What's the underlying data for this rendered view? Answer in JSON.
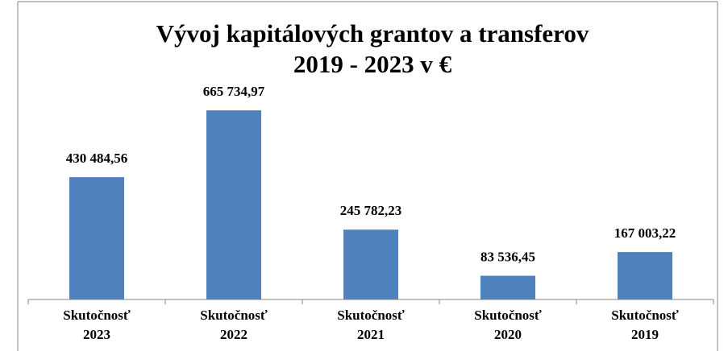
{
  "chart_data": {
    "type": "bar",
    "title": [
      "Vývoj kapitálových grantov a transferov",
      "2019 - 2023 v €"
    ],
    "categories": [
      "Skutočnosť 2023",
      "Skutočnosť 2022",
      "Skutočnosť 2021",
      "Skutočnosť 2020",
      "Skutočnosť 2019"
    ],
    "values": [
      430484.56,
      665734.97,
      245782.23,
      83536.45,
      167003.22
    ],
    "value_labels": [
      "430 484,56",
      "665 734,97",
      "245 782,23",
      "83 536,45",
      "167 003,22"
    ],
    "color": "#4f81bd",
    "ylim": [
      0,
      700000
    ]
  }
}
